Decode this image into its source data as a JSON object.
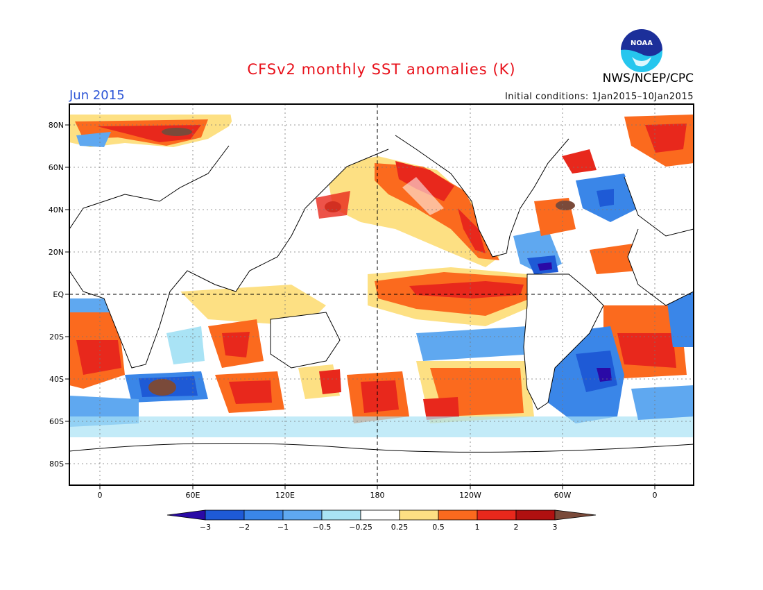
{
  "header": {
    "title": "CFSv2 monthly SST anomalies (K)",
    "month": "Jun 2015",
    "initial_conditions": "Initial conditions: 1Jan2015–10Jan2015",
    "agency": "NWS/NCEP/CPC",
    "logo_text": "NOAA"
  },
  "map": {
    "lat_labels": [
      "80N",
      "60N",
      "40N",
      "20N",
      "EQ",
      "20S",
      "40S",
      "60S",
      "80S"
    ],
    "lon_labels": [
      "0",
      "60E",
      "120E",
      "180",
      "120W",
      "60W",
      "0"
    ]
  },
  "colorbar": {
    "tick_labels": [
      "−3",
      "−2",
      "−1",
      "−0.5",
      "−0.25",
      "0.25",
      "0.5",
      "1",
      "2",
      "3"
    ],
    "colors": [
      "#2a0aa6",
      "#1e5ad6",
      "#3a86e8",
      "#5fa8f0",
      "#a9e3f5",
      "#ffffff",
      "#fde083",
      "#fb6a1e",
      "#e8281c",
      "#b01010",
      "#7a4a3a"
    ]
  },
  "colors": {
    "accent_title": "#e8101a",
    "accent_month": "#2c55d6"
  }
}
